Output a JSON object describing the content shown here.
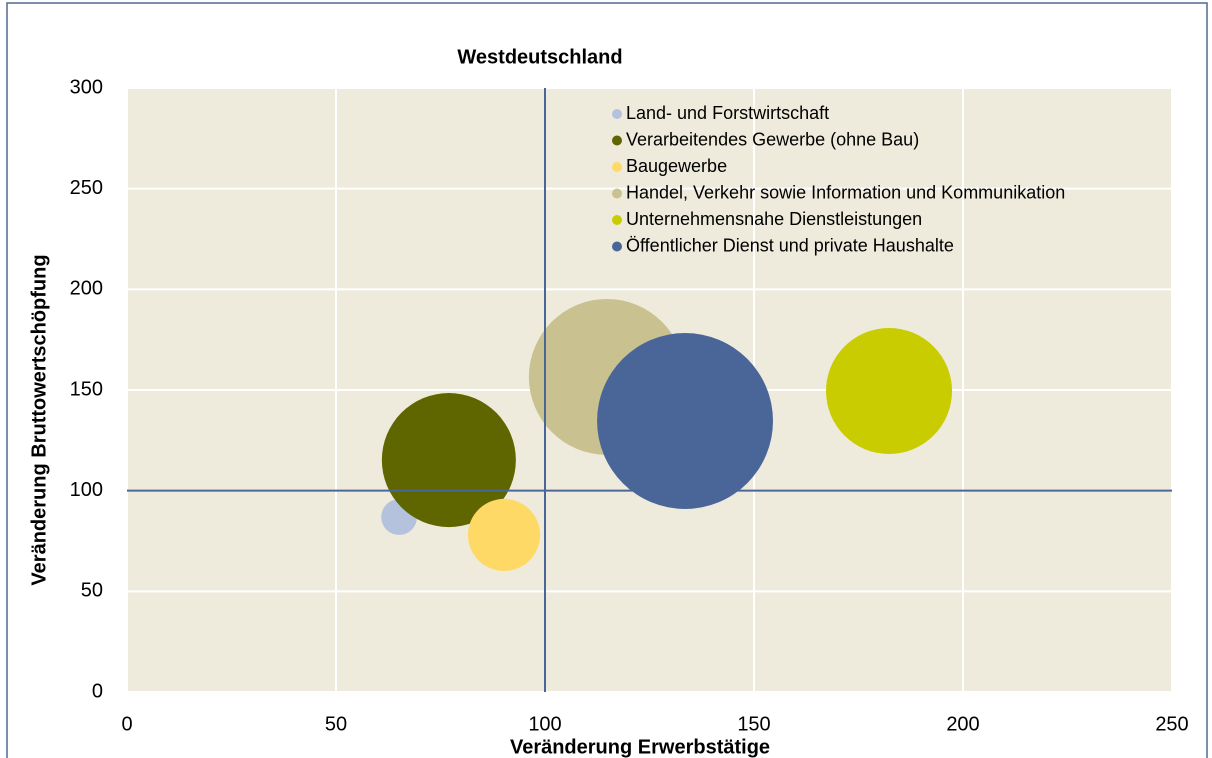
{
  "chart_data": {
    "type": "bubble",
    "title": "Westdeutschland",
    "x_label": "Veränderung Erwerbstätige",
    "y_label": "Veränderung Bruttowertschöpfung",
    "xlim": [
      0,
      250
    ],
    "xticks": [
      0,
      50,
      100,
      150,
      200,
      250
    ],
    "ylim": [
      0,
      300
    ],
    "yticks": [
      0,
      50,
      100,
      150,
      200,
      250,
      300
    ],
    "grid": true,
    "vlines": [
      100
    ],
    "hlines": [
      100
    ],
    "legend": "top-center",
    "series": [
      {
        "name": "Land- und Forstwirtschaft",
        "color": "#b4c2de",
        "x": 65.1,
        "y": 86.9,
        "size": 3.2
      },
      {
        "name": "Verarbeitendes Gewerbe (ohne Bau)",
        "color": "#5f6600",
        "x": 77.0,
        "y": 115.2,
        "size": 44.9
      },
      {
        "name": "Baugewerbe",
        "color": "#ffd966",
        "x": 90.2,
        "y": 78,
        "size": 13
      },
      {
        "name": "Handel, Verkehr sowie Information und Kommunikation",
        "color": "#c9c290",
        "x": 114.8,
        "y": 156.5,
        "size": 60.8
      },
      {
        "name": "Unternehmensnahe Dienstleistungen",
        "color": "#c8cc00",
        "x": 182.3,
        "y": 149.5,
        "size": 39.7
      },
      {
        "name": "Öffentlicher Dienst und private Haushalte",
        "color": "#4a6699",
        "x": 133.5,
        "y": 134.6,
        "size": 77.4
      }
    ]
  }
}
